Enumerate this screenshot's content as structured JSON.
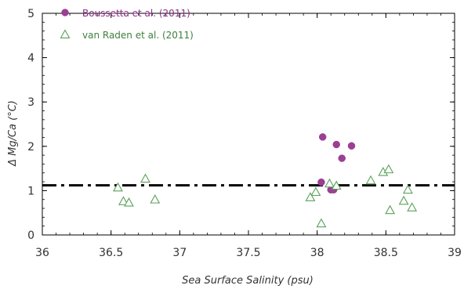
{
  "chart_data": {
    "type": "scatter",
    "xlabel": "Sea Surface Salinity (psu)",
    "ylabel": "Δ Mg/Ca (°C)",
    "xlim": [
      36,
      39
    ],
    "ylim": [
      0,
      5
    ],
    "x_ticks": [
      "36",
      "36.5",
      "37",
      "37.5",
      "38",
      "38.5",
      "39"
    ],
    "y_ticks": [
      "0",
      "1",
      "2",
      "3",
      "4",
      "5"
    ],
    "grid": false,
    "legend_position": "top-left",
    "reference_line": {
      "style": "dash-dot",
      "y": 1.12,
      "color": "#000000"
    },
    "series": [
      {
        "name": "Boussetta et al. (2011)",
        "marker": "filled-circle",
        "color": "#9b3f94",
        "label_color": "#8a2f86",
        "points": [
          [
            38.04,
            2.21
          ],
          [
            38.14,
            2.04
          ],
          [
            38.18,
            1.73
          ],
          [
            38.25,
            2.01
          ],
          [
            38.03,
            1.19
          ],
          [
            38.1,
            1.02
          ],
          [
            38.12,
            1.02
          ]
        ]
      },
      {
        "name": "van Raden et al. (2011)",
        "marker": "open-triangle",
        "color": "#5aa05a",
        "label_color": "#3f7f3f",
        "points": [
          [
            36.55,
            1.07
          ],
          [
            36.59,
            0.76
          ],
          [
            36.63,
            0.73
          ],
          [
            36.75,
            1.27
          ],
          [
            36.82,
            0.8
          ],
          [
            37.95,
            0.85
          ],
          [
            37.99,
            0.97
          ],
          [
            38.03,
            0.26
          ],
          [
            38.09,
            1.16
          ],
          [
            38.14,
            1.11
          ],
          [
            38.39,
            1.23
          ],
          [
            38.48,
            1.42
          ],
          [
            38.52,
            1.48
          ],
          [
            38.53,
            0.56
          ],
          [
            38.63,
            0.77
          ],
          [
            38.66,
            1.02
          ],
          [
            38.69,
            0.62
          ]
        ]
      }
    ]
  }
}
